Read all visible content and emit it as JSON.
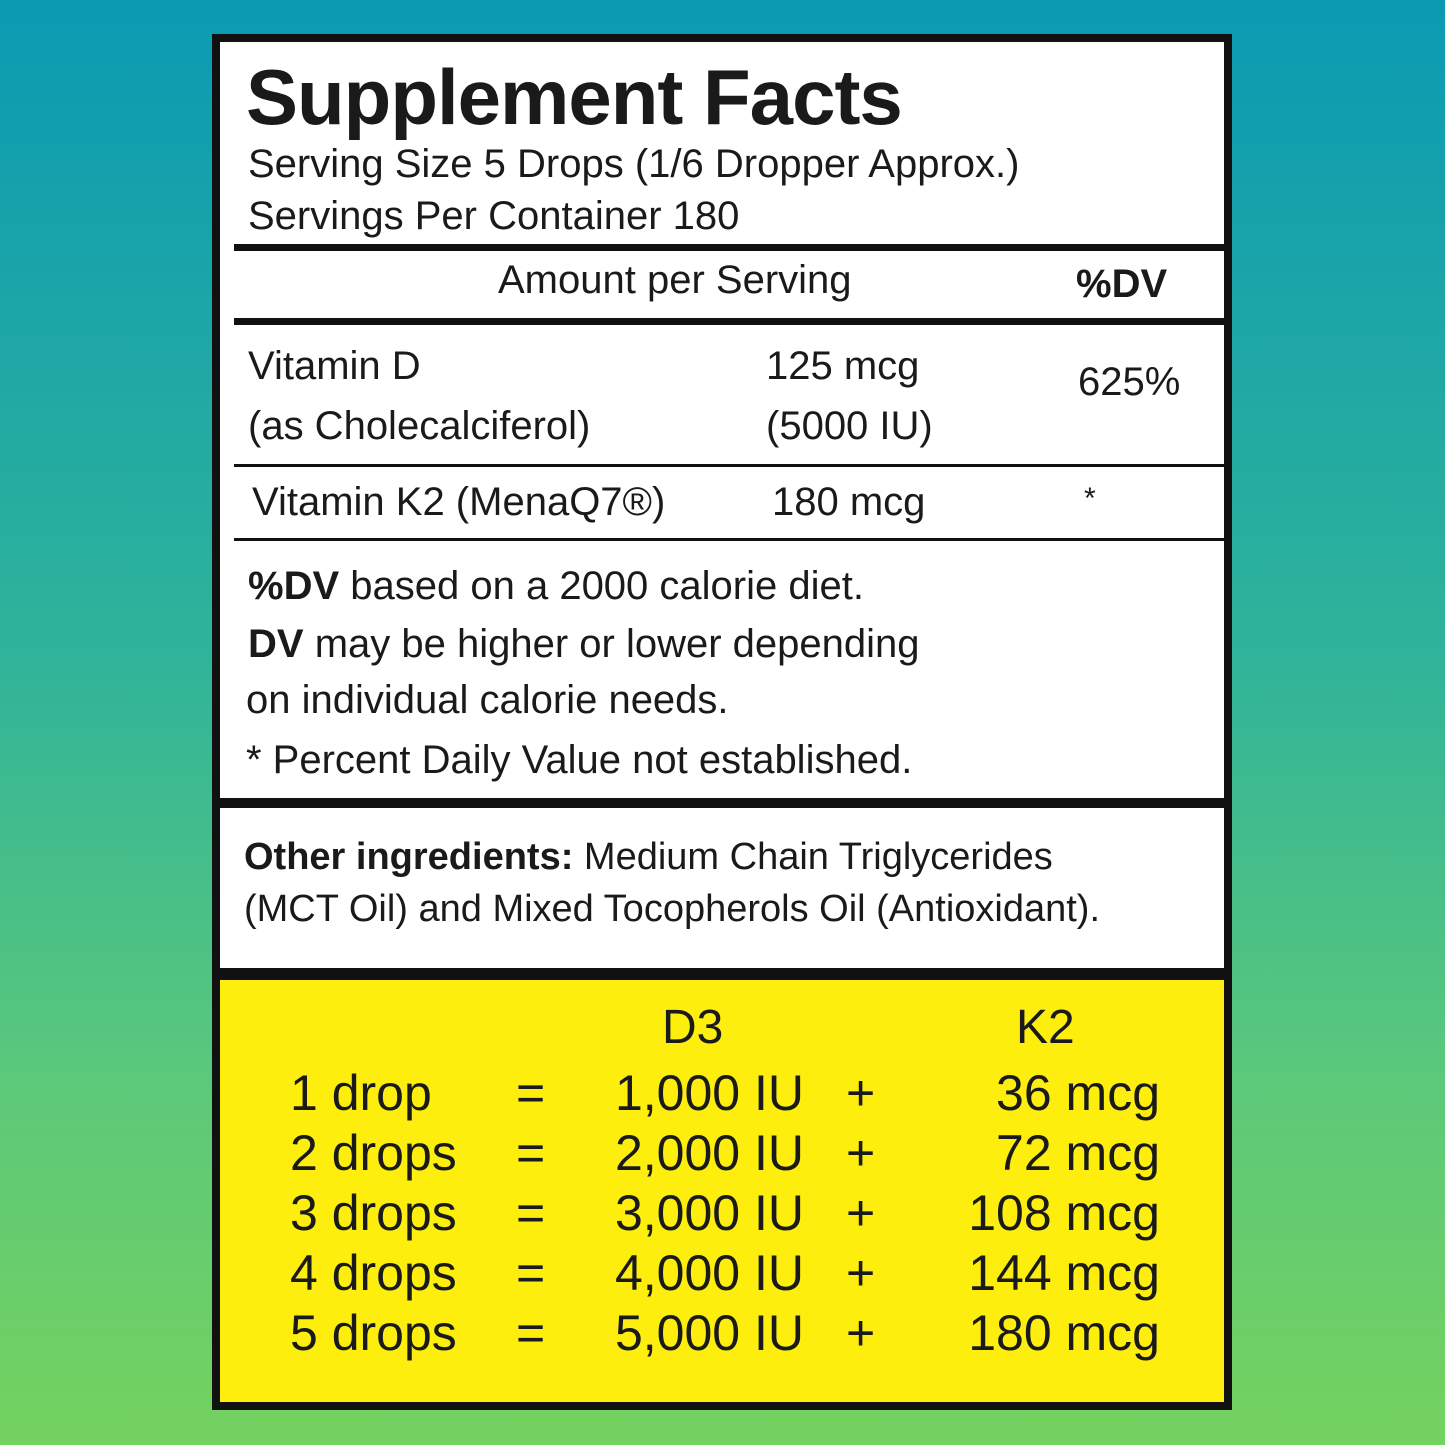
{
  "label": {
    "title": "Supplement Facts",
    "serving_size": "Serving Size 5 Drops (1/6 Dropper Approx.)",
    "servings_per_container": "Servings Per Container 180",
    "header": {
      "amount": "Amount per Serving",
      "dv": "%DV"
    },
    "nutrients": [
      {
        "name": "Vitamin D",
        "sub": "(as Cholecalciferol)",
        "amount": "125 mcg",
        "amount_sub": "(5000 IU)",
        "dv": "625%"
      },
      {
        "name": "Vitamin K2 (MenaQ7®)",
        "amount": "180 mcg",
        "dv": "*"
      }
    ],
    "notes": {
      "line1_bold": "%DV",
      "line1": " based on a 2000 calorie diet.",
      "line2_bold": "DV",
      "line2": " may be higher or lower depending",
      "line3": "on individual calorie needs.",
      "line4": "* Percent Daily Value not established."
    },
    "other_ingredients": {
      "label": "Other ingredients:",
      "text1": " Medium Chain Triglycerides",
      "text2": "(MCT Oil) and Mixed Tocopherols Oil (Antioxidant)."
    }
  },
  "dosage_table": {
    "headers": {
      "d3": "D3",
      "k2": "K2"
    },
    "rows": [
      {
        "drops": "1 drop",
        "eq": "=",
        "d3": "1,000 IU",
        "plus": "+",
        "k2": "36 mcg"
      },
      {
        "drops": "2 drops",
        "eq": "=",
        "d3": "2,000 IU",
        "plus": "+",
        "k2": "72 mcg"
      },
      {
        "drops": "3 drops",
        "eq": "=",
        "d3": "3,000 IU",
        "plus": "+",
        "k2": "108 mcg"
      },
      {
        "drops": "4 drops",
        "eq": "=",
        "d3": "4,000 IU",
        "plus": "+",
        "k2": "144 mcg"
      },
      {
        "drops": "5 drops",
        "eq": "=",
        "d3": "5,000 IU",
        "plus": "+",
        "k2": "180 mcg"
      }
    ],
    "background_color": "#fdee0d"
  }
}
